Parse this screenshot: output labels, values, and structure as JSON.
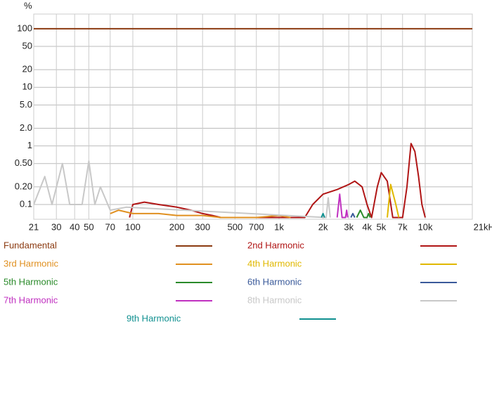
{
  "chart_data": {
    "type": "line",
    "y_unit": "%",
    "log_x": true,
    "log_y": true,
    "grid": true,
    "xlim": [
      21,
      21000
    ],
    "ylim": [
      0.056,
      178
    ],
    "xticks": [
      21,
      30,
      40,
      50,
      70,
      100,
      200,
      300,
      500,
      700,
      {
        "value": 1000,
        "label": "1k"
      },
      {
        "value": 2000,
        "label": "2k"
      },
      {
        "value": 3000,
        "label": "3k"
      },
      {
        "value": 4000,
        "label": "4k"
      },
      {
        "value": 5000,
        "label": "5k"
      },
      {
        "value": 7000,
        "label": "7k"
      },
      {
        "value": 10000,
        "label": "10k"
      },
      {
        "value": 21000,
        "label": "21kHz"
      }
    ],
    "yticks": [
      100,
      50,
      20,
      10,
      {
        "value": 5,
        "label": "5.0"
      },
      {
        "value": 2,
        "label": "2.0"
      },
      1,
      {
        "value": 0.5,
        "label": "0.50"
      },
      {
        "value": 0.2,
        "label": "0.20"
      },
      0.1
    ],
    "series": [
      {
        "name": "Fundamental",
        "color": "#8b3a10",
        "x": [
          21,
          21000
        ],
        "values": [
          100,
          100
        ]
      },
      {
        "name": "2nd Harmonic",
        "color": "#b01515",
        "x": [
          95,
          100,
          120,
          150,
          200,
          250,
          300,
          350,
          400,
          1500,
          1700,
          2000,
          2500,
          3000,
          3300,
          3700,
          4000,
          4300,
          4700,
          5000,
          5500,
          6000,
          7000,
          7500,
          8000,
          8500,
          9000,
          9500,
          10000
        ],
        "values": [
          0.06,
          0.1,
          0.11,
          0.1,
          0.09,
          0.08,
          0.07,
          0.065,
          0.06,
          0.06,
          0.1,
          0.15,
          0.18,
          0.22,
          0.25,
          0.2,
          0.1,
          0.06,
          0.2,
          0.35,
          0.25,
          0.06,
          0.06,
          0.2,
          1.1,
          0.8,
          0.3,
          0.1,
          0.06
        ]
      },
      {
        "name": "3rd Harmonic",
        "color": "#e09020",
        "x": [
          70,
          80,
          100,
          150,
          200,
          300,
          400,
          700,
          1000,
          1200
        ],
        "values": [
          0.07,
          0.08,
          0.07,
          0.07,
          0.065,
          0.065,
          0.06,
          0.06,
          0.065,
          0.06
        ]
      },
      {
        "name": "4th Harmonic",
        "color": "#e0b800",
        "x": [
          5500,
          5800,
          6300,
          6600
        ],
        "values": [
          0.06,
          0.22,
          0.1,
          0.06
        ]
      },
      {
        "name": "5th Harmonic",
        "color": "#2a8a2a",
        "x": [
          3400,
          3600,
          3800,
          4000,
          4100,
          4200
        ],
        "values": [
          0.06,
          0.08,
          0.06,
          0.06,
          0.07,
          0.06
        ]
      },
      {
        "name": "6th Harmonic",
        "color": "#3a5a9a",
        "x": [
          3100,
          3200,
          3300
        ],
        "values": [
          0.06,
          0.07,
          0.06
        ]
      },
      {
        "name": "7th Harmonic",
        "color": "#c030c0",
        "x": [
          2500,
          2600,
          2700,
          2850,
          2900,
          2950
        ],
        "values": [
          0.06,
          0.15,
          0.06,
          0.06,
          0.08,
          0.06
        ]
      },
      {
        "name": "8th Harmonic",
        "color": "#c8c8c8",
        "x": [
          21,
          25,
          28,
          33,
          37,
          45,
          50,
          55,
          60,
          70,
          90,
          2100,
          2170,
          2240
        ],
        "values": [
          0.1,
          0.3,
          0.1,
          0.5,
          0.1,
          0.1,
          0.55,
          0.1,
          0.2,
          0.08,
          0.09,
          0.06,
          0.13,
          0.06
        ]
      },
      {
        "name": "9th Harmonic",
        "color": "#109090",
        "x": [
          1950,
          2000,
          2050
        ],
        "values": [
          0.06,
          0.07,
          0.06
        ]
      }
    ]
  }
}
